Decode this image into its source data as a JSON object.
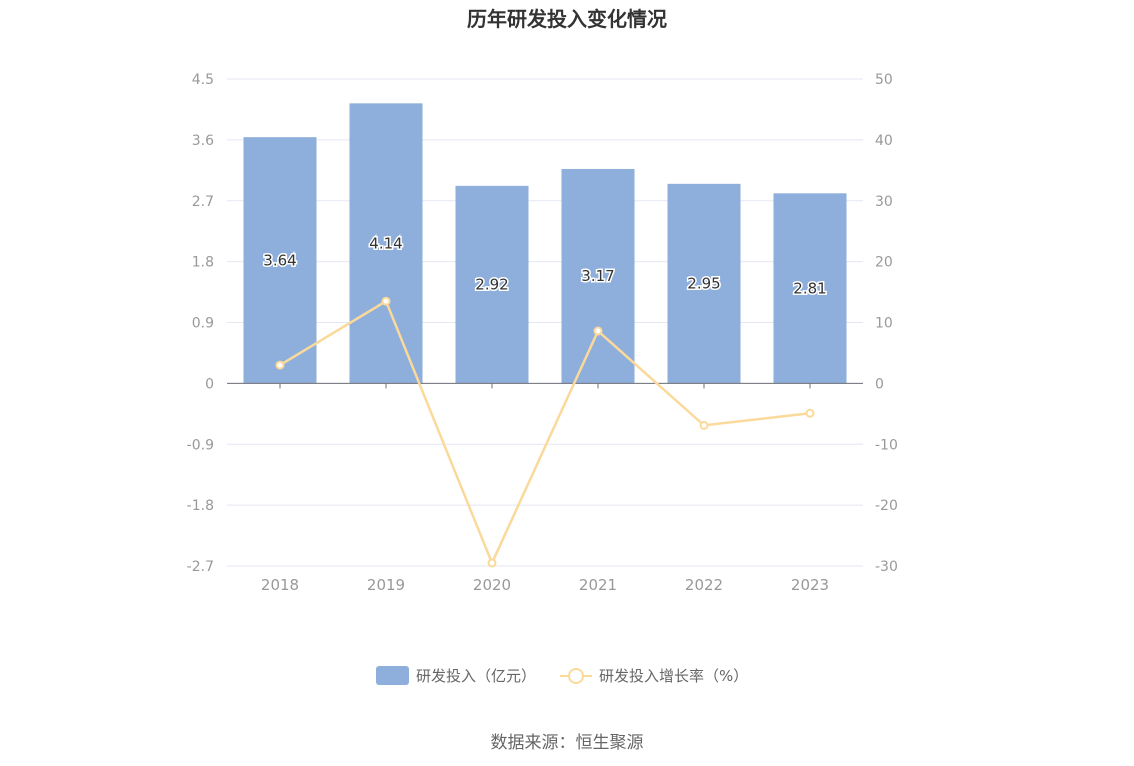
{
  "chart_data": {
    "type": "bar",
    "title": "历年研发投入变化情况",
    "categories": [
      "2018",
      "2019",
      "2020",
      "2021",
      "2022",
      "2023"
    ],
    "series": [
      {
        "name": "研发投入（亿元）",
        "type": "bar",
        "axis": "left",
        "color": "#8eaedb",
        "values": [
          3.64,
          4.14,
          2.92,
          3.17,
          2.95,
          2.81
        ],
        "labels": [
          "3.64",
          "4.14",
          "2.92",
          "3.17",
          "2.95",
          "2.81"
        ]
      },
      {
        "name": "研发投入增长率（%）",
        "type": "line",
        "axis": "right",
        "color": "#fbd99a",
        "values": [
          3.0,
          13.5,
          -29.5,
          8.6,
          -6.9,
          -4.9
        ]
      }
    ],
    "y_left": {
      "ylim": [
        -2.7,
        4.5
      ],
      "ticks": [
        "4.5",
        "3.6",
        "2.7",
        "1.8",
        "0.9",
        "0",
        "-0.9",
        "-1.8",
        "-2.7"
      ]
    },
    "y_right": {
      "ylim": [
        -30,
        50
      ],
      "ticks": [
        "50",
        "40",
        "30",
        "20",
        "10",
        "0",
        "-10",
        "-20",
        "-30"
      ]
    },
    "grid": true,
    "legend": "bottom-center"
  },
  "source": "数据来源：恒生聚源"
}
